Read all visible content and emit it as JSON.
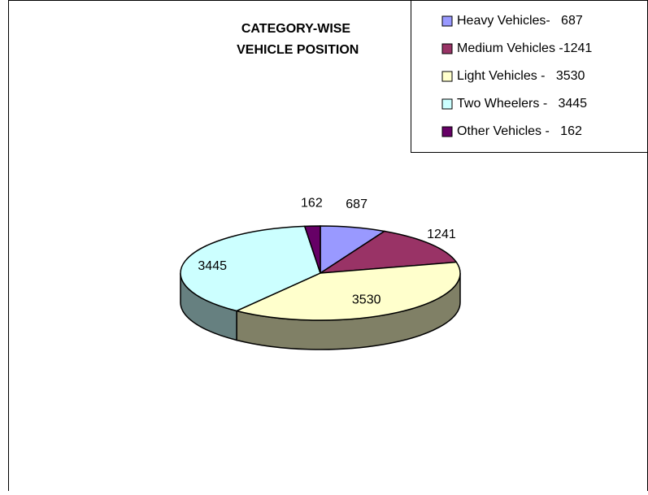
{
  "chart_data": {
    "type": "pie3d",
    "title": "CATEGORY-WISE VEHICLE POSITION",
    "categories": [
      "Heavy Vehicles-   687",
      "Medium Vehicles -1241",
      "Light Vehicles -   3530",
      "Two Wheelers -   3445",
      "Other Vehicles -   162"
    ],
    "values": [
      687,
      1241,
      3530,
      3445,
      162
    ],
    "colors": [
      "#9999ff",
      "#993366",
      "#ffffcc",
      "#ccffff",
      "#660066"
    ],
    "legend": "top-right"
  }
}
